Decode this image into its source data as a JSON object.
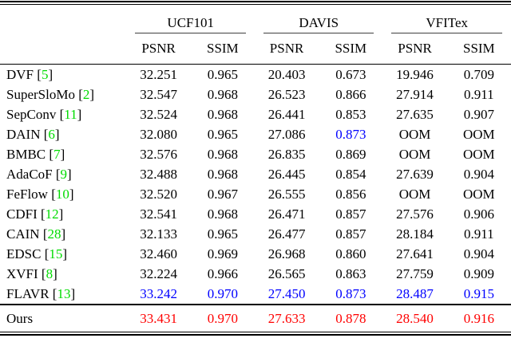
{
  "table": {
    "groups": [
      {
        "label": "UCF101"
      },
      {
        "label": "DAVIS"
      },
      {
        "label": "VFITex"
      }
    ],
    "metric_headers": [
      "PSNR",
      "SSIM",
      "PSNR",
      "SSIM",
      "PSNR",
      "SSIM"
    ],
    "rows": [
      {
        "method": "DVF",
        "cite": "5",
        "values": [
          {
            "text": "32.251",
            "style": "normal"
          },
          {
            "text": "0.965",
            "style": "normal"
          },
          {
            "text": "20.403",
            "style": "normal"
          },
          {
            "text": "0.673",
            "style": "normal"
          },
          {
            "text": "19.946",
            "style": "normal"
          },
          {
            "text": "0.709",
            "style": "normal"
          }
        ]
      },
      {
        "method": "SuperSloMo",
        "cite": "2",
        "values": [
          {
            "text": "32.547",
            "style": "normal"
          },
          {
            "text": "0.968",
            "style": "normal"
          },
          {
            "text": "26.523",
            "style": "normal"
          },
          {
            "text": "0.866",
            "style": "normal"
          },
          {
            "text": "27.914",
            "style": "normal"
          },
          {
            "text": "0.911",
            "style": "normal"
          }
        ]
      },
      {
        "method": "SepConv",
        "cite": "11",
        "values": [
          {
            "text": "32.524",
            "style": "normal"
          },
          {
            "text": "0.968",
            "style": "normal"
          },
          {
            "text": "26.441",
            "style": "normal"
          },
          {
            "text": "0.853",
            "style": "normal"
          },
          {
            "text": "27.635",
            "style": "normal"
          },
          {
            "text": "0.907",
            "style": "normal"
          }
        ]
      },
      {
        "method": "DAIN",
        "cite": "6",
        "values": [
          {
            "text": "32.080",
            "style": "normal"
          },
          {
            "text": "0.965",
            "style": "normal"
          },
          {
            "text": "27.086",
            "style": "normal"
          },
          {
            "text": "0.873",
            "style": "second"
          },
          {
            "text": "OOM",
            "style": "normal"
          },
          {
            "text": "OOM",
            "style": "normal"
          }
        ]
      },
      {
        "method": "BMBC",
        "cite": "7",
        "values": [
          {
            "text": "32.576",
            "style": "normal"
          },
          {
            "text": "0.968",
            "style": "normal"
          },
          {
            "text": "26.835",
            "style": "normal"
          },
          {
            "text": "0.869",
            "style": "normal"
          },
          {
            "text": "OOM",
            "style": "normal"
          },
          {
            "text": "OOM",
            "style": "normal"
          }
        ]
      },
      {
        "method": "AdaCoF",
        "cite": "9",
        "values": [
          {
            "text": "32.488",
            "style": "normal"
          },
          {
            "text": "0.968",
            "style": "normal"
          },
          {
            "text": "26.445",
            "style": "normal"
          },
          {
            "text": "0.854",
            "style": "normal"
          },
          {
            "text": "27.639",
            "style": "normal"
          },
          {
            "text": "0.904",
            "style": "normal"
          }
        ]
      },
      {
        "method": "FeFlow",
        "cite": "10",
        "values": [
          {
            "text": "32.520",
            "style": "normal"
          },
          {
            "text": "0.967",
            "style": "normal"
          },
          {
            "text": "26.555",
            "style": "normal"
          },
          {
            "text": "0.856",
            "style": "normal"
          },
          {
            "text": "OOM",
            "style": "normal"
          },
          {
            "text": "OOM",
            "style": "normal"
          }
        ]
      },
      {
        "method": "CDFI",
        "cite": "12",
        "values": [
          {
            "text": "32.541",
            "style": "normal"
          },
          {
            "text": "0.968",
            "style": "normal"
          },
          {
            "text": "26.471",
            "style": "normal"
          },
          {
            "text": "0.857",
            "style": "normal"
          },
          {
            "text": "27.576",
            "style": "normal"
          },
          {
            "text": "0.906",
            "style": "normal"
          }
        ]
      },
      {
        "method": "CAIN",
        "cite": "28",
        "values": [
          {
            "text": "32.133",
            "style": "normal"
          },
          {
            "text": "0.965",
            "style": "normal"
          },
          {
            "text": "26.477",
            "style": "normal"
          },
          {
            "text": "0.857",
            "style": "normal"
          },
          {
            "text": "28.184",
            "style": "normal"
          },
          {
            "text": "0.911",
            "style": "normal"
          }
        ]
      },
      {
        "method": "EDSC",
        "cite": "15",
        "values": [
          {
            "text": "32.460",
            "style": "normal"
          },
          {
            "text": "0.969",
            "style": "normal"
          },
          {
            "text": "26.968",
            "style": "normal"
          },
          {
            "text": "0.860",
            "style": "normal"
          },
          {
            "text": "27.641",
            "style": "normal"
          },
          {
            "text": "0.904",
            "style": "normal"
          }
        ]
      },
      {
        "method": "XVFI",
        "cite": "8",
        "values": [
          {
            "text": "32.224",
            "style": "normal"
          },
          {
            "text": "0.966",
            "style": "normal"
          },
          {
            "text": "26.565",
            "style": "normal"
          },
          {
            "text": "0.863",
            "style": "normal"
          },
          {
            "text": "27.759",
            "style": "normal"
          },
          {
            "text": "0.909",
            "style": "normal"
          }
        ]
      },
      {
        "method": "FLAVR",
        "cite": "13",
        "values": [
          {
            "text": "33.242",
            "style": "second"
          },
          {
            "text": "0.970",
            "style": "second"
          },
          {
            "text": "27.450",
            "style": "second"
          },
          {
            "text": "0.873",
            "style": "second"
          },
          {
            "text": "28.487",
            "style": "second"
          },
          {
            "text": "0.915",
            "style": "second"
          }
        ]
      }
    ],
    "ours_row": {
      "method": "Ours",
      "cite": "",
      "values": [
        {
          "text": "33.431",
          "style": "best"
        },
        {
          "text": "0.970",
          "style": "best"
        },
        {
          "text": "27.633",
          "style": "best"
        },
        {
          "text": "0.878",
          "style": "best"
        },
        {
          "text": "28.540",
          "style": "best"
        },
        {
          "text": "0.916",
          "style": "best"
        }
      ]
    }
  },
  "colors": {
    "citation_green": "#00dc00",
    "second_blue": "#0000ff",
    "best_red": "#ff0000",
    "text_black": "#000000"
  },
  "legend_semantics": {
    "red": "best result",
    "blue": "second-best result",
    "oom_label": "OOM"
  }
}
